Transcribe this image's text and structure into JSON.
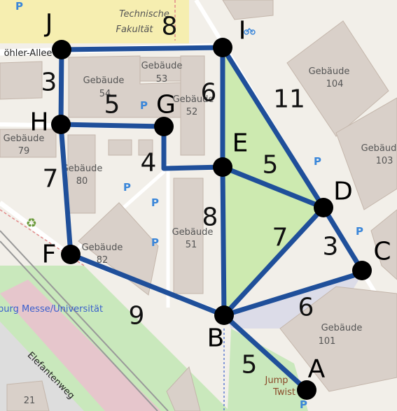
{
  "map": {
    "labels": {
      "tech_line1": "Technische",
      "tech_line2": "Fakultät",
      "street_top": "öhler-Allee",
      "street_bottom": "Elefantenweg",
      "station": "burg Messe/Universität",
      "g53a": "Gebäude",
      "g53b": "53",
      "g54a": "Gebäude",
      "g54b": "54",
      "g52a": "Gebäude",
      "g52b": "52",
      "g79a": "Gebäude",
      "g79b": "79",
      "g80a": "Gebäude",
      "g80b": "80",
      "g51a": "Gebäude",
      "g51b": "51",
      "g82": "Gebäude",
      "g82b": "82",
      "g104a": "Gebäude",
      "g104b": "104",
      "g103a": "Gebäude",
      "g103b": "103",
      "g101a": "Gebäude",
      "g101b": "101",
      "jump1": "Jump",
      "jump2": "Twist",
      "house21": "21"
    },
    "icons": {
      "parking": "P",
      "recycling": "♻",
      "bicycle": "bicycle-icon"
    }
  },
  "graph": {
    "node_color": "#000000",
    "edge_color": "#1f4f9a",
    "nodes": [
      {
        "id": "J",
        "label": "J"
      },
      {
        "id": "I",
        "label": "I"
      },
      {
        "id": "H",
        "label": "H"
      },
      {
        "id": "G",
        "label": "G"
      },
      {
        "id": "E",
        "label": "E"
      },
      {
        "id": "D",
        "label": "D"
      },
      {
        "id": "C",
        "label": "C"
      },
      {
        "id": "F",
        "label": "F"
      },
      {
        "id": "B",
        "label": "B"
      },
      {
        "id": "A",
        "label": "A"
      }
    ],
    "edges": [
      {
        "from": "J",
        "to": "I",
        "weight": "8"
      },
      {
        "from": "J",
        "to": "H",
        "weight": "3"
      },
      {
        "from": "H",
        "to": "G",
        "weight": "5"
      },
      {
        "from": "H",
        "to": "F",
        "weight": "7"
      },
      {
        "from": "G",
        "to": "E",
        "weight": "4"
      },
      {
        "from": "I",
        "to": "E",
        "weight": "6"
      },
      {
        "from": "I",
        "to": "D",
        "weight": "11"
      },
      {
        "from": "E",
        "to": "D",
        "weight": "5"
      },
      {
        "from": "E",
        "to": "B",
        "weight": "8"
      },
      {
        "from": "D",
        "to": "C",
        "weight": "3"
      },
      {
        "from": "D",
        "to": "B",
        "weight": "7"
      },
      {
        "from": "C",
        "to": "B",
        "weight": "6"
      },
      {
        "from": "F",
        "to": "B",
        "weight": "9"
      },
      {
        "from": "B",
        "to": "A",
        "weight": "5"
      }
    ]
  }
}
